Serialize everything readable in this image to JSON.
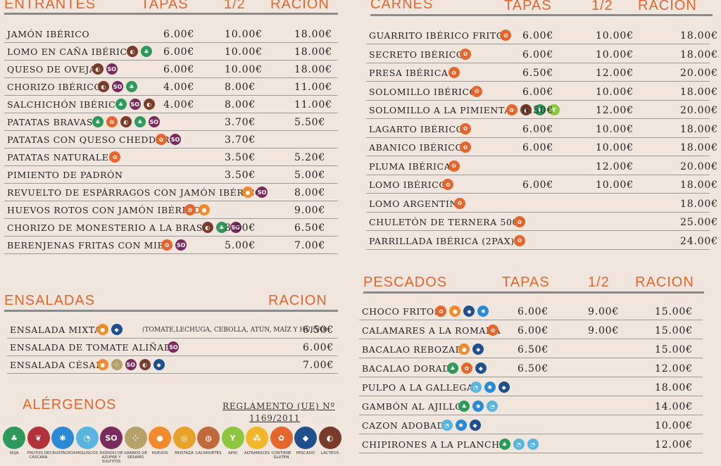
{
  "colors": {
    "gluten": "#e4662c",
    "lacteos": "#7a3b2a",
    "soja": "#2e9a5a",
    "sulfitos": "#7a2a5c",
    "huevo": "#f08a2a",
    "pescado": "#1f4f8c",
    "crustaceos": "#2a8ad6",
    "moluscos": "#5ab4e0",
    "apio": "#8cc63f",
    "sesamo": "#b5a06a"
  },
  "entrantes": {
    "title": "ENTRANTES",
    "col_tapas": "TAPAS",
    "col_media": "1/2",
    "col_racion": "RACION",
    "items": [
      {
        "name": "JAMÓN IBÉRICO",
        "tapa": "6.00€",
        "media": "10.00€",
        "racion": "18.00€",
        "icons": []
      },
      {
        "name": "LOMO EN CAÑA IBÉRICO",
        "tapa": "6.00€",
        "media": "10.00€",
        "racion": "18.00€",
        "icons": [
          "lacteos",
          "soja"
        ]
      },
      {
        "name": "QUESO DE OVEJA",
        "tapa": "6.00€",
        "media": "10.00€",
        "racion": "18.00€",
        "icons": [
          "lacteos",
          "sulfitos"
        ]
      },
      {
        "name": "CHORIZO IBÉRICO",
        "tapa": "4.00€",
        "media": "8.00€",
        "racion": "11.00€",
        "icons": [
          "lacteos",
          "sulfitos",
          "soja"
        ]
      },
      {
        "name": "SALCHICHÓN IBÉRICO",
        "tapa": "4.00€",
        "media": "8.00€",
        "racion": "11.00€",
        "icons": [
          "soja",
          "sulfitos",
          "lacteos"
        ]
      },
      {
        "name": "PATATAS BRAVAS",
        "tapa": "",
        "media": "3.70€",
        "racion": "5.50€",
        "icons": [
          "soja",
          "gluten",
          "lacteos",
          "soja",
          "sulfitos"
        ]
      },
      {
        "name": "PATATAS CON QUESO CHEDDAR",
        "tapa": "",
        "media": "3.70€",
        "racion": "",
        "icons": [
          "gluten",
          "sulfitos"
        ]
      },
      {
        "name": "PATATAS NATURALES",
        "tapa": "",
        "media": "3.50€",
        "racion": "5.20€",
        "icons": [
          "gluten"
        ]
      },
      {
        "name": "PIMIENTO DE PADRÓN",
        "tapa": "",
        "media": "3.50€",
        "racion": "5.00€",
        "icons": []
      },
      {
        "name": "REVUELTO DE ESPÁRRAGOS CON JAMÓN IBÉRICO",
        "tapa": "",
        "media": "",
        "racion": "8.00€",
        "icons": [
          "huevo",
          "sulfitos"
        ]
      },
      {
        "name": "HUEVOS ROTOS CON JAMÓN IBÉRICO",
        "tapa": "",
        "media": "",
        "racion": "9.00€",
        "icons": [
          "gluten",
          "huevo"
        ]
      },
      {
        "name": "CHORIZO DE MONESTERIO  A LA BRASA",
        "tapa": "",
        "media": "3.50€",
        "racion": "6.50€",
        "icons": [
          "lacteos",
          "soja",
          "sulfitos"
        ]
      },
      {
        "name": "BERENJENAS FRITAS CON MIEL",
        "tapa": "",
        "media": "5.00€",
        "racion": "7.00€",
        "icons": [
          "gluten",
          "sulfitos"
        ]
      }
    ]
  },
  "carnes": {
    "title": "CARNES",
    "col_tapas": "TAPAS",
    "col_media": "1/2",
    "col_racion": "RACION",
    "items": [
      {
        "name": "GUARRITO IBÉRICO FRITO",
        "tapa": "6.00€",
        "media": "10.00€",
        "racion": "18.00€",
        "icons": [
          "gluten"
        ]
      },
      {
        "name": "SECRETO IBÉRICO",
        "tapa": "6.00€",
        "media": "10.00€",
        "racion": "18.00€",
        "icons": [
          "gluten"
        ]
      },
      {
        "name": "PRESA IBÉRICA",
        "tapa": "6.50€",
        "media": "12.00€",
        "racion": "20.00€",
        "icons": [
          "gluten"
        ]
      },
      {
        "name": "SOLOMILLO IBÉRICO",
        "tapa": "6.00€",
        "media": "10.00€",
        "racion": "18.00€",
        "icons": [
          "gluten"
        ]
      },
      {
        "name": "SOLOMILLO A LA PIMIENTA",
        "tapa": "6.50€",
        "media": "12.00€",
        "racion": "20.00€",
        "icons": [
          "gluten",
          "lacteos",
          "soja",
          "apio"
        ]
      },
      {
        "name": "LAGARTO IBÉRICO",
        "tapa": "6.00€",
        "media": "10.00€",
        "racion": "18.00€",
        "icons": [
          "gluten"
        ]
      },
      {
        "name": "ABANICO IBÉRICO",
        "tapa": "6.00€",
        "media": "10.00€",
        "racion": "18.00€",
        "icons": [
          "gluten"
        ]
      },
      {
        "name": "PLUMA IBÉRICA",
        "tapa": "",
        "media": "12.00€",
        "racion": "20.00€",
        "icons": [
          "gluten"
        ]
      },
      {
        "name": "LOMO IBÉRICO",
        "tapa": "6.00€",
        "media": "10.00€",
        "racion": "18.00€",
        "icons": [
          "gluten"
        ]
      },
      {
        "name": "LOMO ARGENTINO",
        "tapa": "",
        "media": "",
        "racion": "18.00€",
        "icons": [
          "gluten"
        ]
      },
      {
        "name": "CHULETÓN DE TERNERA  500G",
        "tapa": "",
        "media": "",
        "racion": "25.00€",
        "icons": [
          "gluten"
        ]
      },
      {
        "name": "PARRILLADA IBÉRICA  (2PAX)",
        "tapa": "",
        "media": "",
        "racion": "24.00€",
        "icons": [
          "gluten"
        ]
      }
    ]
  },
  "ensaladas": {
    "title": "ENSALADAS",
    "col_racion": "RACION",
    "items": [
      {
        "name": "ENSALADA MIXTA",
        "note": "(TOMATE,LECHUGA, CEBOLLA, ATÚN, MAÍZ Y HUEVO)",
        "racion": "6.50€",
        "icons": [
          "huevo",
          "pescado"
        ]
      },
      {
        "name": "ENSALADA DE TOMATE ALIÑADO",
        "note": "",
        "racion": "6.00€",
        "icons": [
          "sulfitos"
        ]
      },
      {
        "name": "ENSALADA CÉSAR",
        "note": "",
        "racion": "7.00€",
        "icons": [
          "huevo",
          "sesamo",
          "sulfitos",
          "lacteos",
          "pescado"
        ]
      }
    ]
  },
  "pescados": {
    "title": "PESCADOS",
    "col_tapas": "TAPAS",
    "col_media": "1/2",
    "col_racion": "RACION",
    "items": [
      {
        "name": "CHOCO FRITOS",
        "tapa": "6.00€",
        "media": "9.00€",
        "racion": "15.00€",
        "icons": [
          "gluten",
          "huevo",
          "pescado",
          "crustaceos"
        ]
      },
      {
        "name": "CALAMARES A LA ROMANA",
        "tapa": "6.00€",
        "media": "9.00€",
        "racion": "15.00€",
        "icons": [
          "gluten"
        ]
      },
      {
        "name": "BACALAO REBOZADO",
        "tapa": "6.50€",
        "media": "",
        "racion": "15.00€",
        "icons": [
          "huevo",
          "pescado"
        ]
      },
      {
        "name": "BACALAO DORADO",
        "tapa": "6.50€",
        "media": "",
        "racion": "12.00€",
        "icons": [
          "soja",
          "gluten",
          "pescado"
        ]
      },
      {
        "name": "PULPO A LA GALLEGA",
        "tapa": "",
        "media": "",
        "racion": "18.00€",
        "icons": [
          "moluscos",
          "crustaceos",
          "pescado"
        ]
      },
      {
        "name": "GAMBÓN AL AJILLO",
        "tapa": "",
        "media": "",
        "racion": "14.00€",
        "icons": [
          "soja",
          "crustaceos",
          "moluscos"
        ]
      },
      {
        "name": "CAZON ADOBADO",
        "tapa": "",
        "media": "",
        "racion": "10.00€",
        "icons": [
          "moluscos",
          "crustaceos",
          "pescado"
        ]
      },
      {
        "name": "CHIPIRONES A LA PLANCHA",
        "tapa": "",
        "media": "",
        "racion": "12.00€",
        "icons": [
          "soja",
          "moluscos",
          "moluscos"
        ]
      }
    ]
  },
  "alergenos": {
    "title": "ALÉRGENOS",
    "regulation_line1": "REGLAMENTO (UE) Nº",
    "regulation_line2": "1169/2011",
    "legend": [
      {
        "key": "soja",
        "label": "SOJA"
      },
      {
        "key": "frutos",
        "label": "FRUTOS DE CÁSCARA"
      },
      {
        "key": "crustaceos",
        "label": "CRUSTÁCEOS"
      },
      {
        "key": "moluscos",
        "label": "MOLUSCOS"
      },
      {
        "key": "sulfitos",
        "label": "DIÓXIDO DE AZUFRE Y SULFITOS"
      },
      {
        "key": "sesamo",
        "label": "GRANOS DE SÉSAMO"
      },
      {
        "key": "huevo",
        "label": "HUEVOS"
      },
      {
        "key": "mostaza",
        "label": "MOSTAZA"
      },
      {
        "key": "cacahuetes",
        "label": "CACAHUETES"
      },
      {
        "key": "apio",
        "label": "APIO"
      },
      {
        "key": "altramuces",
        "label": "ALTRAMUCES"
      },
      {
        "key": "gluten",
        "label": "CONTIENE GLUTEN"
      },
      {
        "key": "pescado",
        "label": "PESCADO"
      },
      {
        "key": "lacteos",
        "label": "LÁCTEOS"
      }
    ]
  }
}
